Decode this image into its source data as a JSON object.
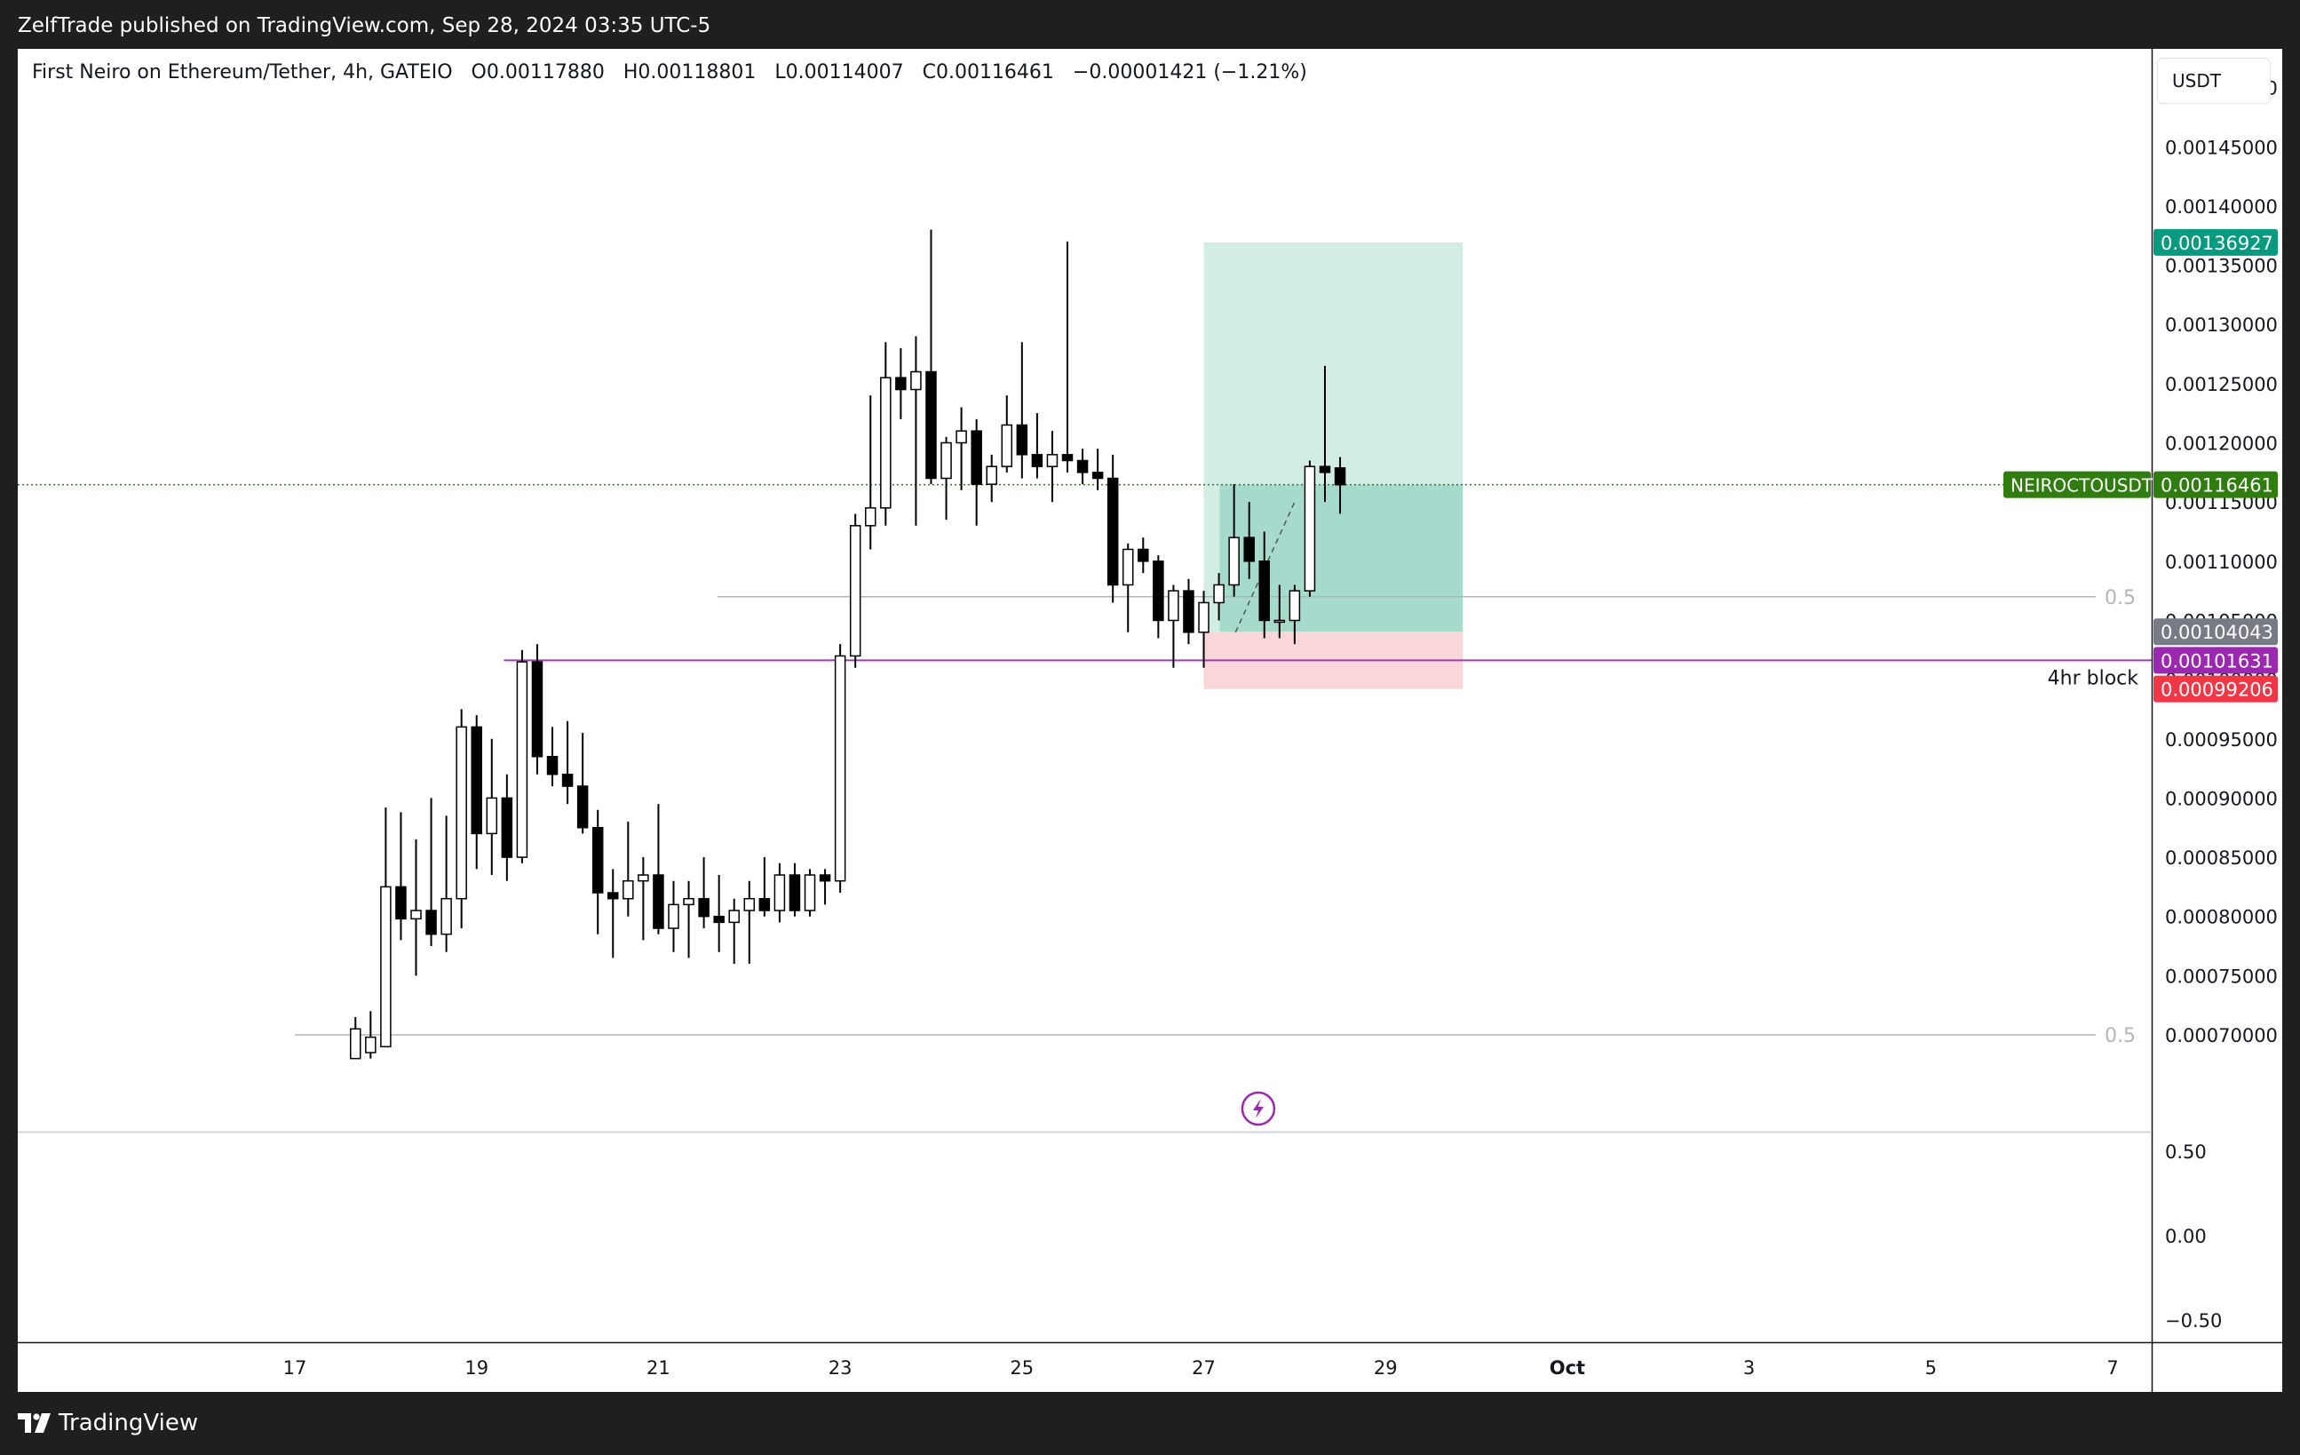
{
  "header": {
    "published": "ZelfTrade published on TradingView.com, Sep 28, 2024 03:35 UTC-5"
  },
  "legend": {
    "symbol": "First Neiro on Ethereum/Tether, 4h, GATEIO",
    "open_key": "O",
    "open": "0.00117880",
    "high_key": "H",
    "high": "0.00118801",
    "low_key": "L",
    "low": "0.00114007",
    "close_key": "C",
    "close": "0.00116461",
    "change": "−0.00001421 (−1.21%)"
  },
  "currency_button": "USDT",
  "footer": {
    "brand": "TradingView"
  },
  "colors": {
    "up_body": "#ffffff",
    "down_body": "#000000",
    "wick": "#000000",
    "target_zone": "#d1ede6",
    "target_zone_active": "#a6dacd",
    "stop_zone": "#fbd6d9",
    "purple_line": "#a13cb6",
    "last_price_badge": "#2e7d0e",
    "target_badge": "#089981",
    "entry_badge": "#787b86",
    "stop_badge": "#f23645",
    "purple_badge": "#9c27b0"
  },
  "chart_data": {
    "type": "candlestick",
    "timeframe": "4h",
    "y_range": [
      0.00068,
      0.00158
    ],
    "y_ticks": [
      "0.00070000",
      "0.00075000",
      "0.00080000",
      "0.00085000",
      "0.00090000",
      "0.00095000",
      "0.00100000",
      "0.00105000",
      "0.00110000",
      "0.00115000",
      "0.00120000",
      "0.00125000",
      "0.00130000",
      "0.00135000",
      "0.00140000",
      "0.00145000",
      "0.00150000"
    ],
    "x_ticks": [
      {
        "label": "17",
        "day": 17
      },
      {
        "label": "19",
        "day": 19
      },
      {
        "label": "21",
        "day": 21
      },
      {
        "label": "23",
        "day": 23
      },
      {
        "label": "25",
        "day": 25
      },
      {
        "label": "27",
        "day": 27
      },
      {
        "label": "29",
        "day": 29
      },
      {
        "label": "Oct",
        "day": 31
      },
      {
        "label": "3",
        "day": 33
      },
      {
        "label": "5",
        "day": 35
      },
      {
        "label": "7",
        "day": 37
      }
    ],
    "candles": [
      {
        "t": "Sep 17 16:00",
        "o": 0.00068,
        "h": 0.000715,
        "l": 0.00068,
        "c": 0.000705
      },
      {
        "t": "Sep 17 20:00",
        "o": 0.000685,
        "h": 0.00072,
        "l": 0.00068,
        "c": 0.000698
      },
      {
        "t": "Sep 18 00:00",
        "o": 0.00069,
        "h": 0.000892,
        "l": 0.00069,
        "c": 0.000825
      },
      {
        "t": "Sep 18 04:00",
        "o": 0.000825,
        "h": 0.000888,
        "l": 0.00078,
        "c": 0.000798
      },
      {
        "t": "Sep 18 08:00",
        "o": 0.000798,
        "h": 0.000865,
        "l": 0.00075,
        "c": 0.000805
      },
      {
        "t": "Sep 18 12:00",
        "o": 0.000805,
        "h": 0.0009,
        "l": 0.000775,
        "c": 0.000785
      },
      {
        "t": "Sep 18 16:00",
        "o": 0.000785,
        "h": 0.000885,
        "l": 0.00077,
        "c": 0.000815
      },
      {
        "t": "Sep 18 20:00",
        "o": 0.000815,
        "h": 0.000975,
        "l": 0.00079,
        "c": 0.00096
      },
      {
        "t": "Sep 19 00:00",
        "o": 0.00096,
        "h": 0.00097,
        "l": 0.00084,
        "c": 0.00087
      },
      {
        "t": "Sep 19 04:00",
        "o": 0.00087,
        "h": 0.00095,
        "l": 0.000835,
        "c": 0.0009
      },
      {
        "t": "Sep 19 08:00",
        "o": 0.0009,
        "h": 0.00092,
        "l": 0.00083,
        "c": 0.00085
      },
      {
        "t": "Sep 19 12:00",
        "o": 0.00085,
        "h": 0.001025,
        "l": 0.000845,
        "c": 0.001015
      },
      {
        "t": "Sep 19 16:00",
        "o": 0.001015,
        "h": 0.00103,
        "l": 0.00092,
        "c": 0.000935
      },
      {
        "t": "Sep 19 20:00",
        "o": 0.000935,
        "h": 0.00096,
        "l": 0.00091,
        "c": 0.00092
      },
      {
        "t": "Sep 20 00:00",
        "o": 0.00092,
        "h": 0.000965,
        "l": 0.000895,
        "c": 0.00091
      },
      {
        "t": "Sep 20 04:00",
        "o": 0.00091,
        "h": 0.000955,
        "l": 0.00087,
        "c": 0.000875
      },
      {
        "t": "Sep 20 08:00",
        "o": 0.000875,
        "h": 0.00089,
        "l": 0.000785,
        "c": 0.00082
      },
      {
        "t": "Sep 20 12:00",
        "o": 0.00082,
        "h": 0.00084,
        "l": 0.000765,
        "c": 0.000815
      },
      {
        "t": "Sep 20 16:00",
        "o": 0.000815,
        "h": 0.00088,
        "l": 0.0008,
        "c": 0.00083
      },
      {
        "t": "Sep 20 20:00",
        "o": 0.00083,
        "h": 0.00085,
        "l": 0.00078,
        "c": 0.000835
      },
      {
        "t": "Sep 21 00:00",
        "o": 0.000835,
        "h": 0.000895,
        "l": 0.000785,
        "c": 0.00079
      },
      {
        "t": "Sep 21 04:00",
        "o": 0.00079,
        "h": 0.00083,
        "l": 0.00077,
        "c": 0.00081
      },
      {
        "t": "Sep 21 08:00",
        "o": 0.00081,
        "h": 0.00083,
        "l": 0.000765,
        "c": 0.000815
      },
      {
        "t": "Sep 21 12:00",
        "o": 0.000815,
        "h": 0.00085,
        "l": 0.00079,
        "c": 0.0008
      },
      {
        "t": "Sep 21 16:00",
        "o": 0.0008,
        "h": 0.000835,
        "l": 0.00077,
        "c": 0.000795
      },
      {
        "t": "Sep 21 20:00",
        "o": 0.000795,
        "h": 0.000815,
        "l": 0.00076,
        "c": 0.000805
      },
      {
        "t": "Sep 22 00:00",
        "o": 0.000805,
        "h": 0.00083,
        "l": 0.00076,
        "c": 0.000815
      },
      {
        "t": "Sep 22 04:00",
        "o": 0.000815,
        "h": 0.00085,
        "l": 0.0008,
        "c": 0.000805
      },
      {
        "t": "Sep 22 08:00",
        "o": 0.000805,
        "h": 0.000845,
        "l": 0.000795,
        "c": 0.000835
      },
      {
        "t": "Sep 22 12:00",
        "o": 0.000835,
        "h": 0.000845,
        "l": 0.0008,
        "c": 0.000805
      },
      {
        "t": "Sep 22 16:00",
        "o": 0.000805,
        "h": 0.00084,
        "l": 0.0008,
        "c": 0.000835
      },
      {
        "t": "Sep 22 20:00",
        "o": 0.000835,
        "h": 0.00084,
        "l": 0.00081,
        "c": 0.00083
      },
      {
        "t": "Sep 23 00:00",
        "o": 0.00083,
        "h": 0.00103,
        "l": 0.00082,
        "c": 0.00102
      },
      {
        "t": "Sep 23 04:00",
        "o": 0.00102,
        "h": 0.00114,
        "l": 0.00101,
        "c": 0.00113
      },
      {
        "t": "Sep 23 08:00",
        "o": 0.00113,
        "h": 0.00124,
        "l": 0.00111,
        "c": 0.001145
      },
      {
        "t": "Sep 23 12:00",
        "o": 0.001145,
        "h": 0.001285,
        "l": 0.00113,
        "c": 0.001255
      },
      {
        "t": "Sep 23 16:00",
        "o": 0.001255,
        "h": 0.00128,
        "l": 0.00122,
        "c": 0.001245
      },
      {
        "t": "Sep 23 20:00",
        "o": 0.001245,
        "h": 0.00129,
        "l": 0.00113,
        "c": 0.00126
      },
      {
        "t": "Sep 24 00:00",
        "o": 0.00126,
        "h": 0.00138,
        "l": 0.001165,
        "c": 0.00117
      },
      {
        "t": "Sep 24 04:00",
        "o": 0.00117,
        "h": 0.001205,
        "l": 0.001135,
        "c": 0.0012
      },
      {
        "t": "Sep 24 08:00",
        "o": 0.0012,
        "h": 0.00123,
        "l": 0.00116,
        "c": 0.00121
      },
      {
        "t": "Sep 24 12:00",
        "o": 0.00121,
        "h": 0.00122,
        "l": 0.00113,
        "c": 0.001165
      },
      {
        "t": "Sep 24 16:00",
        "o": 0.001165,
        "h": 0.00119,
        "l": 0.00115,
        "c": 0.00118
      },
      {
        "t": "Sep 24 20:00",
        "o": 0.00118,
        "h": 0.00124,
        "l": 0.001175,
        "c": 0.001215
      },
      {
        "t": "Sep 25 00:00",
        "o": 0.001215,
        "h": 0.001285,
        "l": 0.00117,
        "c": 0.00119
      },
      {
        "t": "Sep 25 04:00",
        "o": 0.00119,
        "h": 0.001225,
        "l": 0.00117,
        "c": 0.00118
      },
      {
        "t": "Sep 25 08:00",
        "o": 0.00118,
        "h": 0.00121,
        "l": 0.00115,
        "c": 0.00119
      },
      {
        "t": "Sep 25 12:00",
        "o": 0.00119,
        "h": 0.00137,
        "l": 0.001175,
        "c": 0.001185
      },
      {
        "t": "Sep 25 16:00",
        "o": 0.001185,
        "h": 0.001195,
        "l": 0.001165,
        "c": 0.001175
      },
      {
        "t": "Sep 25 20:00",
        "o": 0.001175,
        "h": 0.001195,
        "l": 0.00116,
        "c": 0.00117
      },
      {
        "t": "Sep 26 00:00",
        "o": 0.00117,
        "h": 0.00119,
        "l": 0.001065,
        "c": 0.00108
      },
      {
        "t": "Sep 26 04:00",
        "o": 0.00108,
        "h": 0.001115,
        "l": 0.00104,
        "c": 0.00111
      },
      {
        "t": "Sep 26 08:00",
        "o": 0.00111,
        "h": 0.00112,
        "l": 0.00109,
        "c": 0.0011
      },
      {
        "t": "Sep 26 12:00",
        "o": 0.0011,
        "h": 0.001105,
        "l": 0.001035,
        "c": 0.00105
      },
      {
        "t": "Sep 26 16:00",
        "o": 0.00105,
        "h": 0.00108,
        "l": 0.00101,
        "c": 0.001075
      },
      {
        "t": "Sep 26 20:00",
        "o": 0.001075,
        "h": 0.001085,
        "l": 0.00103,
        "c": 0.00104
      },
      {
        "t": "Sep 27 00:00",
        "o": 0.00104,
        "h": 0.001075,
        "l": 0.00101,
        "c": 0.001065
      },
      {
        "t": "Sep 27 04:00",
        "o": 0.001065,
        "h": 0.00109,
        "l": 0.00105,
        "c": 0.00108
      },
      {
        "t": "Sep 27 08:00",
        "o": 0.00108,
        "h": 0.001165,
        "l": 0.00107,
        "c": 0.00112
      },
      {
        "t": "Sep 27 12:00",
        "o": 0.00112,
        "h": 0.00115,
        "l": 0.001085,
        "c": 0.0011
      },
      {
        "t": "Sep 27 16:00",
        "o": 0.0011,
        "h": 0.001125,
        "l": 0.001035,
        "c": 0.00105
      },
      {
        "t": "Sep 27 20:00",
        "o": 0.00105,
        "h": 0.00108,
        "l": 0.001035,
        "c": 0.00105
      },
      {
        "t": "Sep 28 00:00",
        "o": 0.00105,
        "h": 0.00108,
        "l": 0.00103,
        "c": 0.001075
      },
      {
        "t": "Sep 28 04:00",
        "o": 0.001075,
        "h": 0.001185,
        "l": 0.00107,
        "c": 0.00118
      },
      {
        "t": "Sep 28 08:00",
        "o": 0.00118,
        "h": 0.001265,
        "l": 0.00115,
        "c": 0.001175
      },
      {
        "t": "Sep 28 12:00",
        "o": 0.0011788,
        "h": 0.00118801,
        "l": 0.00114007,
        "c": 0.00116461
      }
    ],
    "position": {
      "type": "long",
      "entry": 0.00104043,
      "target": 0.00136927,
      "stop": 0.00099206,
      "start_day": 27.0,
      "end_day": 29.85
    },
    "lines": [
      {
        "name": "4hr block",
        "price": 0.00101631,
        "from_day": 19.3,
        "label": "4hr block"
      },
      {
        "name": "upper-fib",
        "price": 0.00107,
        "from_day": 21.65,
        "label": "0.5"
      },
      {
        "name": "lower-fib",
        "price": 0.0007,
        "from_day": 17.0,
        "label": "0.5"
      }
    ],
    "price_badges": {
      "target": "0.00136927",
      "last_symbol": "NEIROCTOUSDT",
      "last": "0.00116461",
      "entry": "0.00104043",
      "purple": "0.00101631",
      "stop": "0.00099206"
    },
    "oscillator": {
      "y_ticks": [
        "0.50",
        "0.00",
        "−0.50"
      ],
      "y_values": [
        0.5,
        0.0,
        -0.5
      ]
    }
  }
}
